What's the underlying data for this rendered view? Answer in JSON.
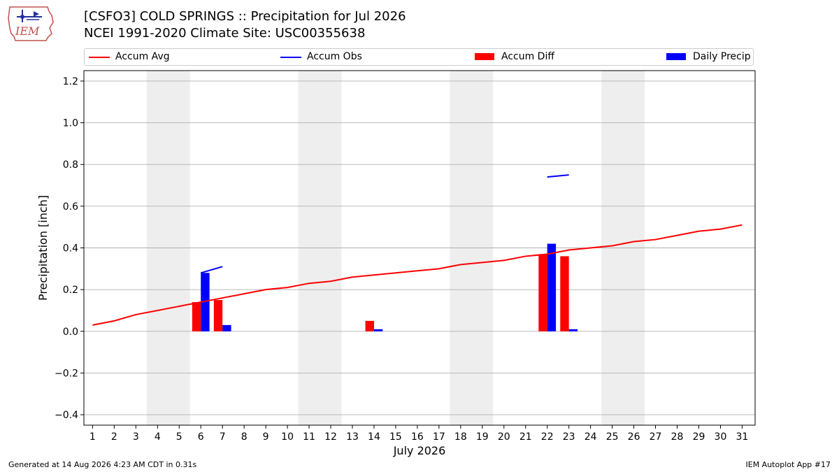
{
  "header": {
    "logo_text": "IEM",
    "title_line1": "[CSFO3] COLD SPRINGS :: Precipitation for Jul 2026",
    "title_line2": "NCEI 1991-2020 Climate Site: USC00355638"
  },
  "footer": {
    "left": "Generated at 14 Aug 2026 4:23 AM CDT in 0.31s",
    "right": "IEM Autoplot App #17"
  },
  "colors": {
    "avg": "#ff0000",
    "obs": "#0000ff",
    "diff": "#ff0000",
    "daily": "#0000ff",
    "weekend": "#eeeeee",
    "grid": "#b0b0b0"
  },
  "chart_data": {
    "type": "bar",
    "xlabel": "July 2026",
    "ylabel": "Precipitation [inch]",
    "ylim": [
      -0.45,
      1.25
    ],
    "xlim": [
      0.6,
      31.6
    ],
    "yticks": [
      -0.4,
      -0.2,
      0.0,
      0.2,
      0.4,
      0.6,
      0.8,
      1.0,
      1.2
    ],
    "ytick_labels": [
      "−0.4",
      "−0.2",
      "0.0",
      "0.2",
      "0.4",
      "0.6",
      "0.8",
      "1.0",
      "1.2"
    ],
    "days": [
      1,
      2,
      3,
      4,
      5,
      6,
      7,
      8,
      9,
      10,
      11,
      12,
      13,
      14,
      15,
      16,
      17,
      18,
      19,
      20,
      21,
      22,
      23,
      24,
      25,
      26,
      27,
      28,
      29,
      30,
      31
    ],
    "grid": true,
    "legend_position": "top",
    "weekend_spans": [
      [
        3.5,
        5.5
      ],
      [
        10.5,
        12.5
      ],
      [
        17.5,
        19.5
      ],
      [
        24.5,
        26.5
      ]
    ],
    "series": [
      {
        "name": "Accum Avg",
        "kind": "line",
        "x": [
          1,
          2,
          3,
          4,
          5,
          6,
          7,
          8,
          9,
          10,
          11,
          12,
          13,
          14,
          15,
          16,
          17,
          18,
          19,
          20,
          21,
          22,
          23,
          24,
          25,
          26,
          27,
          28,
          29,
          30,
          31
        ],
        "values": [
          0.03,
          0.05,
          0.08,
          0.1,
          0.12,
          0.14,
          0.16,
          0.18,
          0.2,
          0.21,
          0.23,
          0.24,
          0.26,
          0.27,
          0.28,
          0.29,
          0.3,
          0.32,
          0.33,
          0.34,
          0.36,
          0.37,
          0.39,
          0.4,
          0.41,
          0.43,
          0.44,
          0.46,
          0.48,
          0.49,
          0.51
        ]
      },
      {
        "name": "Accum Obs",
        "kind": "line",
        "segments": [
          {
            "x": [
              6,
              7
            ],
            "values": [
              0.28,
              0.31
            ]
          },
          {
            "x": [
              22,
              23
            ],
            "values": [
              0.74,
              0.75
            ]
          }
        ]
      },
      {
        "name": "Accum Diff",
        "kind": "bar",
        "x": [
          6,
          7,
          14,
          22,
          23
        ],
        "values": [
          0.14,
          0.15,
          0.05,
          0.37,
          0.36
        ]
      },
      {
        "name": "Daily Precip",
        "kind": "bar",
        "x": [
          6,
          7,
          14,
          22,
          23
        ],
        "values": [
          0.28,
          0.03,
          0.01,
          0.42,
          0.01
        ]
      }
    ]
  }
}
